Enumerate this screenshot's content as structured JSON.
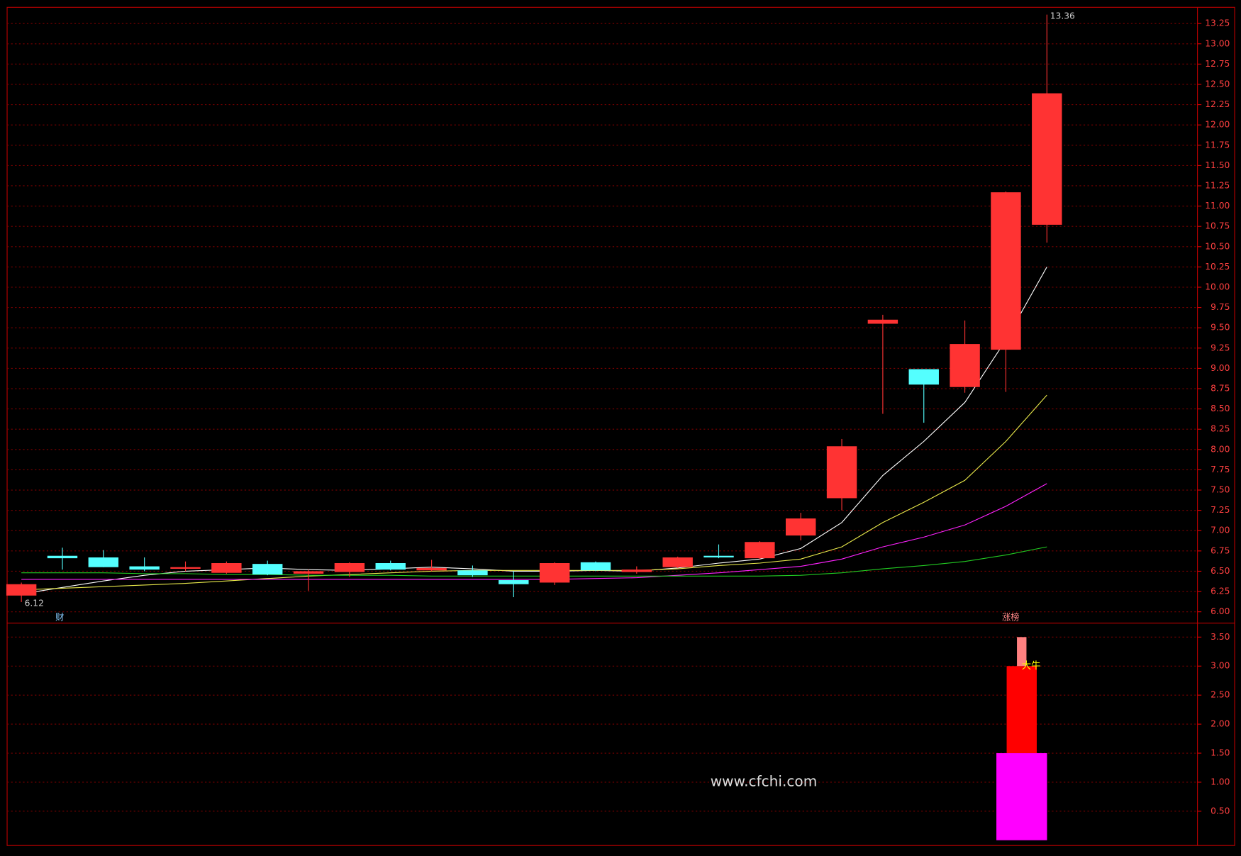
{
  "chart_data": [
    {
      "type": "candlestick",
      "up_color": "#ff3333",
      "down_color": "#54ffff",
      "open": [
        6.2,
        6.69,
        6.67,
        6.56,
        6.53,
        6.48,
        6.59,
        6.47,
        6.49,
        6.6,
        6.51,
        6.51,
        6.39,
        6.36,
        6.61,
        6.49,
        6.55,
        6.69,
        6.66,
        6.94,
        7.4,
        9.55,
        8.99,
        8.77,
        9.23,
        10.77
      ],
      "high": [
        6.36,
        6.79,
        6.76,
        6.67,
        6.62,
        6.62,
        6.63,
        6.52,
        6.61,
        6.63,
        6.64,
        6.57,
        6.5,
        6.61,
        6.62,
        6.56,
        6.68,
        6.83,
        6.87,
        7.22,
        8.13,
        9.66,
        8.99,
        9.59,
        11.18,
        13.36
      ],
      "low": [
        6.12,
        6.52,
        6.55,
        6.5,
        6.5,
        6.47,
        6.45,
        6.26,
        6.43,
        6.51,
        6.5,
        6.43,
        6.18,
        6.33,
        6.5,
        6.47,
        6.54,
        6.66,
        6.65,
        6.88,
        7.25,
        8.44,
        8.33,
        8.7,
        8.71,
        10.55
      ],
      "close": [
        6.34,
        6.66,
        6.55,
        6.52,
        6.55,
        6.6,
        6.46,
        6.5,
        6.6,
        6.52,
        6.54,
        6.45,
        6.34,
        6.6,
        6.51,
        6.52,
        6.67,
        6.67,
        6.86,
        7.15,
        8.04,
        9.6,
        8.8,
        9.3,
        11.17,
        12.39
      ],
      "series": [
        {
          "color": "#ffffff",
          "values": [
            6.22,
            6.3,
            6.38,
            6.45,
            6.5,
            6.52,
            6.54,
            6.52,
            6.51,
            6.53,
            6.55,
            6.53,
            6.5,
            6.5,
            6.51,
            6.5,
            6.54,
            6.6,
            6.65,
            6.78,
            7.1,
            7.68,
            8.1,
            8.58,
            9.35,
            10.25
          ]
        },
        {
          "color": "#e8e84a",
          "values": [
            6.27,
            6.29,
            6.31,
            6.33,
            6.35,
            6.38,
            6.41,
            6.44,
            6.46,
            6.48,
            6.5,
            6.51,
            6.51,
            6.51,
            6.51,
            6.51,
            6.53,
            6.57,
            6.6,
            6.65,
            6.8,
            7.1,
            7.35,
            7.62,
            8.1,
            8.67
          ]
        },
        {
          "color": "#ff22ff",
          "values": [
            6.4,
            6.4,
            6.4,
            6.4,
            6.4,
            6.4,
            6.4,
            6.4,
            6.4,
            6.4,
            6.4,
            6.4,
            6.4,
            6.4,
            6.41,
            6.42,
            6.45,
            6.48,
            6.52,
            6.56,
            6.65,
            6.8,
            6.92,
            7.07,
            7.3,
            7.58
          ]
        },
        {
          "color": "#22cc22",
          "values": [
            6.48,
            6.48,
            6.48,
            6.47,
            6.47,
            6.46,
            6.46,
            6.45,
            6.45,
            6.45,
            6.44,
            6.44,
            6.44,
            6.44,
            6.44,
            6.44,
            6.44,
            6.44,
            6.44,
            6.45,
            6.48,
            6.53,
            6.57,
            6.62,
            6.7,
            6.8
          ]
        }
      ],
      "ylim": [
        5.88,
        13.44
      ],
      "yticks": [
        {
          "value": 6,
          "label": "6.00"
        },
        {
          "value": 6.25,
          "label": "6.25"
        },
        {
          "value": 6.5,
          "label": "6.50"
        },
        {
          "value": 6.75,
          "label": "6.75"
        },
        {
          "value": 7,
          "label": "7.00"
        },
        {
          "value": 7.25,
          "label": "7.25"
        },
        {
          "value": 7.5,
          "label": "7.50"
        },
        {
          "value": 7.75,
          "label": "7.75"
        },
        {
          "value": 8,
          "label": "8.00"
        },
        {
          "value": 8.25,
          "label": "8.25"
        },
        {
          "value": 8.5,
          "label": "8.50"
        },
        {
          "value": 8.75,
          "label": "8.75"
        },
        {
          "value": 9,
          "label": "9.00"
        },
        {
          "value": 9.25,
          "label": "9.25"
        },
        {
          "value": 9.5,
          "label": "9.50"
        },
        {
          "value": 9.75,
          "label": "9.75"
        },
        {
          "value": 10,
          "label": "10.00"
        },
        {
          "value": 10.25,
          "label": "10.25"
        },
        {
          "value": 10.5,
          "label": "10.50"
        },
        {
          "value": 10.75,
          "label": "10.75"
        },
        {
          "value": 11,
          "label": "11.00"
        },
        {
          "value": 11.25,
          "label": "11.25"
        },
        {
          "value": 11.5,
          "label": "11.50"
        },
        {
          "value": 11.75,
          "label": "11.75"
        },
        {
          "value": 12,
          "label": "12.00"
        },
        {
          "value": 12.25,
          "label": "12.25"
        },
        {
          "value": 12.5,
          "label": "12.50"
        },
        {
          "value": 12.75,
          "label": "12.75"
        },
        {
          "value": 13,
          "label": "13.00"
        },
        {
          "value": 13.25,
          "label": "13.25"
        }
      ],
      "grid": true,
      "high_label": "13.36",
      "low_label": "6.12",
      "annotations": [
        "财",
        "涨榜"
      ]
    },
    {
      "type": "stacked-bar",
      "series": [
        {
          "color": "#ff00ff",
          "values": [
            1.5
          ]
        },
        {
          "color": "#ff0000",
          "values": [
            1.5
          ]
        },
        {
          "color": "#ff8080",
          "values": [
            0.5
          ]
        }
      ],
      "label": "大牛",
      "ylim": [
        -0.05,
        3.7
      ],
      "yticks": [
        {
          "value": 0.5,
          "label": "0.50"
        },
        {
          "value": 1,
          "label": "1.00"
        },
        {
          "value": 1.5,
          "label": "1.50"
        },
        {
          "value": 2,
          "label": "2.00"
        },
        {
          "value": 2.5,
          "label": "2.50"
        },
        {
          "value": 3,
          "label": "3.00"
        },
        {
          "value": 3.5,
          "label": "3.50"
        }
      ],
      "grid": true,
      "watermark": "www.cfchi.com"
    }
  ]
}
